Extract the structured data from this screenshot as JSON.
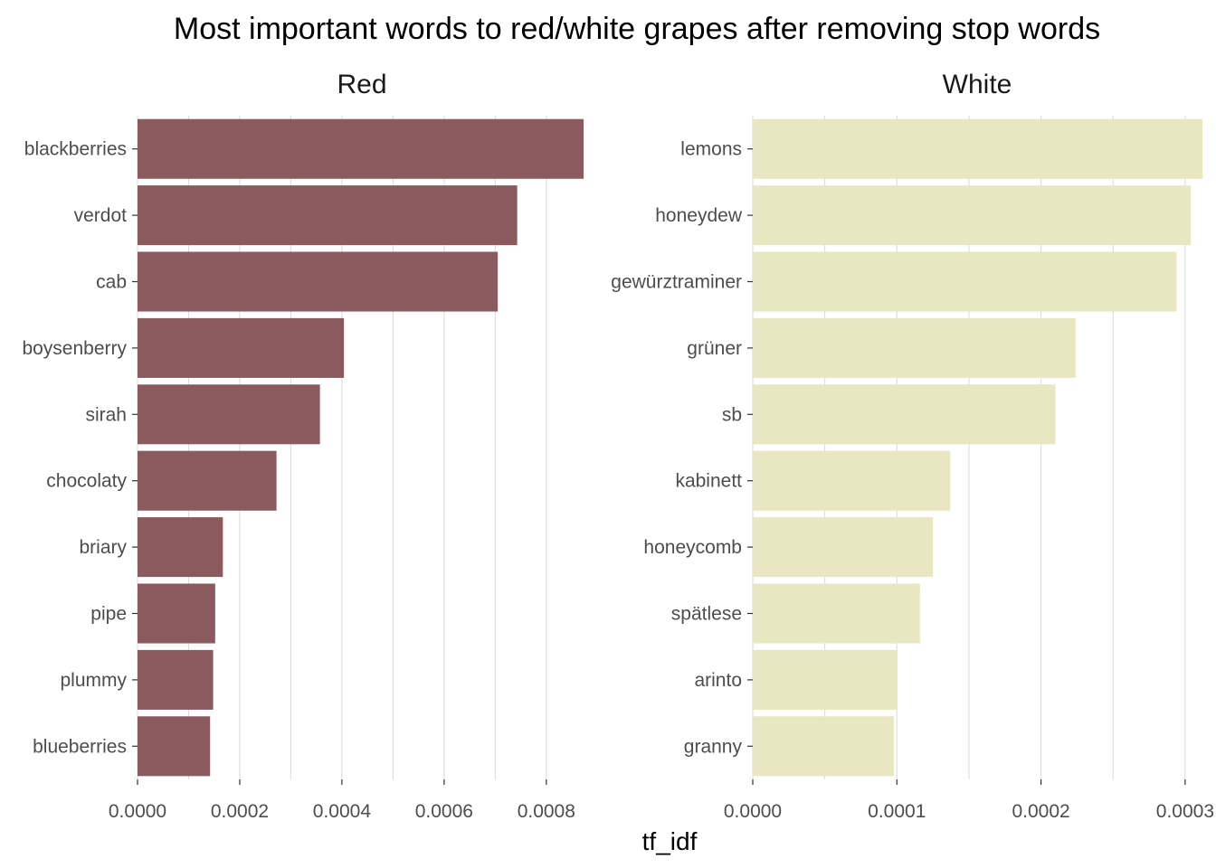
{
  "chart_data": {
    "type": "bar",
    "orientation": "horizontal",
    "title": "Most important words to red/white grapes after removing stop words",
    "xlabel": "tf_idf",
    "ylabel": "",
    "grid": true,
    "legend": "none",
    "panels": [
      {
        "name": "Red",
        "color": "#8B5A5F",
        "xlim": [
          0,
          0.00088
        ],
        "ticks": [
          0,
          0.0002,
          0.0004,
          0.0006,
          0.0008
        ],
        "tick_labels": [
          "0.0000",
          "0.0002",
          "0.0004",
          "0.0006",
          "0.0008"
        ],
        "categories": [
          "blackberries",
          "verdot",
          "cab",
          "boysenberry",
          "sirah",
          "chocolaty",
          "briary",
          "pipe",
          "plummy",
          "blueberries"
        ],
        "values": [
          0.000873,
          0.000743,
          0.000705,
          0.000404,
          0.000357,
          0.000272,
          0.000167,
          0.000152,
          0.000148,
          0.000142
        ]
      },
      {
        "name": "White",
        "color": "#E9E6C2",
        "xlim": [
          0,
          0.000312
        ],
        "ticks": [
          0,
          0.0001,
          0.0002,
          0.0003
        ],
        "tick_labels": [
          "0.0000",
          "0.0001",
          "0.0002",
          "0.0003"
        ],
        "categories": [
          "lemons",
          "honeydew",
          "gewürztraminer",
          "grüner",
          "sb",
          "kabinett",
          "honeycomb",
          "spätlese",
          "arinto",
          "granny"
        ],
        "values": [
          0.000312,
          0.000304,
          0.000294,
          0.000224,
          0.00021,
          0.000137,
          0.000125,
          0.000116,
          0.0001,
          9.8e-05
        ]
      }
    ]
  }
}
